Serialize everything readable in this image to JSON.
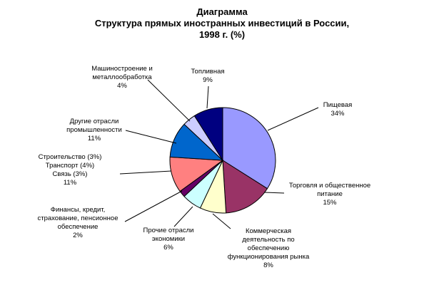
{
  "chart_data": {
    "type": "pie",
    "title": "Диаграмма",
    "subtitle": "Структура прямых иностранных инвестиций в России, 1998 г. (%)",
    "title_lines": [
      "Диаграмма",
      "Структура прямых иностранных инвестиций в России,",
      "1998 г. (%)"
    ],
    "start_angle_deg": 0,
    "direction": "clockwise",
    "slices": [
      {
        "label": "Пищевая",
        "label_lines": [
          "Пищевая",
          "34%"
        ],
        "value": 34,
        "color": "#9999ff"
      },
      {
        "label": "Торговля и общественное питание",
        "label_lines": [
          "Торговля и общественное",
          "питание",
          "15%"
        ],
        "value": 15,
        "color": "#993366"
      },
      {
        "label": "Коммерческая деятельность по обеспечению функционирования рынка",
        "label_lines": [
          "Коммерческая",
          "деятельность по",
          "обеспечению",
          "функционирования рынка",
          "8%"
        ],
        "value": 8,
        "color": "#ffffcc"
      },
      {
        "label": "Прочие отрасли экономики",
        "label_lines": [
          "Прочие отрасли",
          "экономики",
          "6%"
        ],
        "value": 6,
        "color": "#ccffff"
      },
      {
        "label": "Финансы, кредит, страхование, пенсионное обеспечение",
        "label_lines": [
          "Финансы, кредит,",
          "страхование, пенсионное",
          "обеспечение",
          "2%"
        ],
        "value": 2,
        "color": "#660066"
      },
      {
        "label": "Строительство (3%) Транспорт (4%) Связь (3%)",
        "label_lines": [
          "Строительство (3%)",
          "Транспорт (4%)",
          "Связь (3%)",
          "11%"
        ],
        "value": 11,
        "color": "#ff8080"
      },
      {
        "label": "Другие отрасли промышленности",
        "label_lines": [
          "Другие отрасли",
          "промышленности",
          "11%"
        ],
        "value": 11,
        "color": "#0066cc"
      },
      {
        "label": "Машиностроение и металлообработка",
        "label_lines": [
          "Машиностроение и",
          "металлообработка",
          "4%"
        ],
        "value": 4,
        "color": "#ccccff"
      },
      {
        "label": "Топливная",
        "label_lines": [
          "Топливная",
          "9%"
        ],
        "value": 9,
        "color": "#000080"
      }
    ]
  }
}
